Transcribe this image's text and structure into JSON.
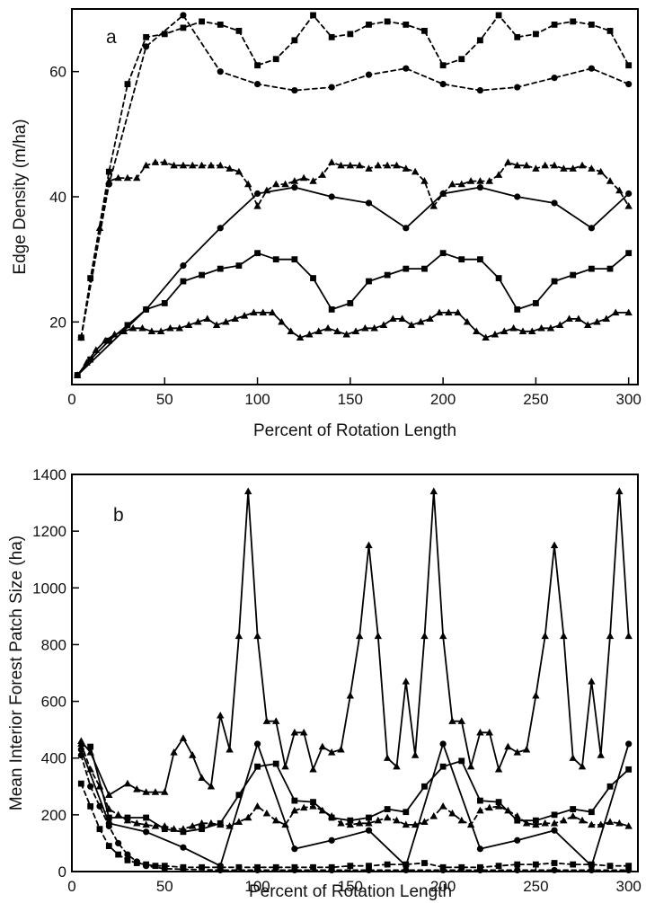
{
  "chart_data": [
    {
      "type": "line",
      "panel_label": "a",
      "xlabel": "Percent of Rotation Length",
      "ylabel": "Edge Density (m/ha)",
      "xlim": [
        0,
        305
      ],
      "ylim": [
        10,
        70
      ],
      "xticks": [
        0,
        50,
        100,
        150,
        200,
        250,
        300
      ],
      "yticks": [
        20,
        40,
        60
      ],
      "grid": false,
      "legend": "none",
      "series": [
        {
          "line_style": "dashed",
          "marker": "square",
          "x": [
            5,
            10,
            20,
            30,
            40,
            50,
            60,
            70,
            80,
            90,
            100,
            110,
            120,
            130,
            140,
            150,
            160,
            170,
            180,
            190,
            200,
            210,
            220,
            230,
            240,
            250,
            260,
            270,
            280,
            290,
            300
          ],
          "y": [
            17.5,
            27,
            44,
            58,
            65.5,
            66,
            67,
            68,
            67.5,
            66.5,
            61,
            62,
            65,
            69,
            65.5,
            66,
            67.5,
            68,
            67.5,
            66.5,
            61,
            62,
            65,
            69,
            65.5,
            66,
            67.5,
            68,
            67.5,
            66.5,
            61
          ]
        },
        {
          "line_style": "dashed",
          "marker": "circle",
          "x": [
            5,
            20,
            40,
            60,
            80,
            100,
            120,
            140,
            160,
            180,
            200,
            220,
            240,
            260,
            280,
            300
          ],
          "y": [
            17.5,
            42,
            64,
            69,
            60,
            58,
            57,
            57.5,
            59.5,
            60.5,
            58,
            57,
            57.5,
            59,
            60.5,
            58
          ]
        },
        {
          "line_style": "dashed",
          "marker": "triangle",
          "x": [
            5,
            15,
            20,
            25,
            30,
            35,
            40,
            45,
            50,
            55,
            60,
            65,
            70,
            75,
            80,
            85,
            90,
            95,
            100,
            105,
            110,
            115,
            120,
            125,
            130,
            135,
            140,
            145,
            150,
            155,
            160,
            165,
            170,
            175,
            180,
            185,
            190,
            195,
            200,
            205,
            210,
            215,
            220,
            225,
            230,
            235,
            240,
            245,
            250,
            255,
            260,
            265,
            270,
            275,
            280,
            285,
            290,
            295,
            300
          ],
          "y": [
            17.5,
            35,
            42.5,
            43,
            43,
            43,
            45,
            45.5,
            45.5,
            45,
            45,
            45,
            45,
            45,
            45,
            44.5,
            44,
            42,
            38.5,
            41,
            42,
            42,
            42.5,
            43,
            42.5,
            43.5,
            45.5,
            45,
            45,
            45,
            44.5,
            45,
            45,
            45,
            44.5,
            44,
            42.5,
            38.5,
            40.5,
            42,
            42,
            42.5,
            42.5,
            42.5,
            43.5,
            45.5,
            45,
            45,
            44.5,
            45,
            45,
            44.5,
            44.5,
            45,
            44.5,
            44,
            42.5,
            41,
            38.5
          ]
        },
        {
          "line_style": "solid",
          "marker": "circle",
          "x": [
            3,
            40,
            60,
            80,
            100,
            120,
            140,
            160,
            180,
            200,
            220,
            240,
            260,
            280,
            300
          ],
          "y": [
            11.5,
            22,
            29,
            35,
            40.5,
            41.5,
            40,
            39,
            35,
            40.5,
            41.5,
            40,
            39,
            35,
            40.5
          ]
        },
        {
          "line_style": "solid",
          "marker": "square",
          "x": [
            3,
            10,
            20,
            30,
            40,
            50,
            60,
            70,
            80,
            90,
            100,
            110,
            120,
            130,
            140,
            150,
            160,
            170,
            180,
            190,
            200,
            210,
            220,
            230,
            240,
            250,
            260,
            270,
            280,
            290,
            300
          ],
          "y": [
            11.5,
            14,
            17,
            19.5,
            22,
            23,
            26.5,
            27.5,
            28.5,
            29,
            31,
            30,
            30,
            27,
            22,
            23,
            26.5,
            27.5,
            28.5,
            28.5,
            31,
            30,
            30,
            27,
            22,
            23,
            26.5,
            27.5,
            28.5,
            28.5,
            31
          ]
        },
        {
          "line_style": "solid",
          "marker": "triangle",
          "x": [
            3,
            8,
            13,
            18,
            23,
            28,
            33,
            38,
            43,
            48,
            53,
            58,
            63,
            68,
            73,
            78,
            83,
            88,
            93,
            98,
            103,
            108,
            113,
            118,
            123,
            128,
            133,
            138,
            143,
            148,
            153,
            158,
            163,
            168,
            173,
            178,
            183,
            188,
            193,
            198,
            203,
            208,
            213,
            218,
            223,
            228,
            233,
            238,
            243,
            248,
            253,
            258,
            263,
            268,
            273,
            278,
            283,
            288,
            293,
            300
          ],
          "y": [
            11.5,
            13.5,
            15.5,
            17,
            18,
            18.5,
            19,
            19,
            18.5,
            18.5,
            19,
            19,
            19.5,
            20,
            20.5,
            19.5,
            20,
            20.5,
            21,
            21.5,
            21.5,
            21.5,
            20,
            18.5,
            17.5,
            18,
            18.5,
            19,
            18.5,
            18,
            18.5,
            19,
            19,
            19.5,
            20.5,
            20.5,
            19.5,
            20,
            20.5,
            21.5,
            21.5,
            21.5,
            20,
            18.5,
            17.5,
            18,
            18.5,
            19,
            18.5,
            18.5,
            19,
            19,
            19.5,
            20.5,
            20.5,
            19.5,
            20,
            20.5,
            21.5,
            21.5
          ]
        }
      ]
    },
    {
      "type": "line",
      "panel_label": "b",
      "xlabel": "Percent of Rotation Length",
      "ylabel": "Mean Interior Forest Patch Size (ha)",
      "xlim": [
        0,
        305
      ],
      "ylim": [
        0,
        1400
      ],
      "xticks": [
        0,
        50,
        100,
        150,
        200,
        250,
        300
      ],
      "yticks": [
        0,
        200,
        400,
        600,
        800,
        1000,
        1200,
        1400
      ],
      "grid": false,
      "legend": "none",
      "series": [
        {
          "line_style": "solid",
          "marker": "triangle",
          "x": [
            5,
            10,
            20,
            30,
            35,
            40,
            45,
            50,
            55,
            60,
            65,
            70,
            75,
            80,
            85,
            90,
            95,
            100,
            105,
            110,
            115,
            120,
            125,
            130,
            135,
            140,
            145,
            150,
            155,
            160,
            165,
            170,
            175,
            180,
            185,
            190,
            195,
            200,
            205,
            210,
            215,
            220,
            225,
            230,
            235,
            240,
            245,
            250,
            255,
            260,
            265,
            270,
            275,
            280,
            285,
            290,
            295,
            300
          ],
          "y": [
            460,
            420,
            270,
            310,
            290,
            280,
            280,
            280,
            420,
            470,
            410,
            330,
            300,
            550,
            430,
            830,
            1340,
            830,
            530,
            530,
            370,
            490,
            490,
            360,
            440,
            420,
            430,
            620,
            830,
            1150,
            830,
            400,
            370,
            670,
            410,
            830,
            1340,
            830,
            530,
            530,
            370,
            490,
            490,
            360,
            440,
            420,
            430,
            620,
            830,
            1150,
            830,
            400,
            370,
            670,
            410,
            830,
            1340,
            830
          ]
        },
        {
          "line_style": "solid",
          "marker": "circle",
          "x": [
            5,
            20,
            40,
            60,
            80,
            100,
            120,
            140,
            160,
            180,
            200,
            220,
            240,
            260,
            280,
            300
          ],
          "y": [
            430,
            170,
            140,
            85,
            20,
            450,
            80,
            110,
            145,
            20,
            450,
            80,
            110,
            145,
            20,
            450
          ]
        },
        {
          "line_style": "solid",
          "marker": "square",
          "x": [
            10,
            20,
            30,
            40,
            50,
            60,
            70,
            80,
            90,
            100,
            110,
            120,
            130,
            140,
            150,
            160,
            170,
            180,
            190,
            200,
            210,
            220,
            230,
            240,
            250,
            260,
            270,
            280,
            290,
            300
          ],
          "y": [
            440,
            190,
            190,
            190,
            150,
            140,
            150,
            170,
            270,
            370,
            380,
            250,
            245,
            190,
            180,
            190,
            220,
            210,
            300,
            370,
            390,
            250,
            245,
            180,
            180,
            200,
            220,
            210,
            300,
            360
          ]
        },
        {
          "line_style": "dashed",
          "marker": "triangle",
          "x": [
            5,
            10,
            15,
            20,
            25,
            30,
            35,
            40,
            45,
            50,
            55,
            60,
            65,
            70,
            75,
            80,
            85,
            90,
            95,
            100,
            105,
            110,
            115,
            120,
            125,
            130,
            135,
            140,
            145,
            150,
            155,
            160,
            165,
            170,
            175,
            180,
            185,
            190,
            195,
            200,
            205,
            210,
            215,
            220,
            225,
            230,
            235,
            240,
            245,
            250,
            255,
            260,
            265,
            270,
            275,
            280,
            285,
            290,
            295,
            300
          ],
          "y": [
            450,
            360,
            300,
            220,
            200,
            180,
            170,
            165,
            160,
            160,
            150,
            150,
            160,
            170,
            170,
            165,
            160,
            175,
            190,
            230,
            205,
            180,
            165,
            215,
            225,
            230,
            215,
            195,
            170,
            165,
            170,
            170,
            180,
            190,
            180,
            165,
            165,
            175,
            195,
            230,
            205,
            180,
            165,
            215,
            225,
            230,
            215,
            195,
            170,
            165,
            170,
            170,
            180,
            195,
            180,
            165,
            165,
            175,
            170,
            160
          ]
        },
        {
          "line_style": "dashed",
          "marker": "square",
          "x": [
            5,
            10,
            15,
            20,
            25,
            30,
            35,
            40,
            45,
            50,
            60,
            70,
            80,
            90,
            100,
            110,
            120,
            130,
            140,
            150,
            160,
            170,
            180,
            190,
            200,
            210,
            220,
            230,
            240,
            250,
            260,
            270,
            280,
            290,
            300
          ],
          "y": [
            310,
            230,
            150,
            90,
            60,
            40,
            30,
            25,
            20,
            20,
            15,
            15,
            15,
            15,
            15,
            15,
            15,
            15,
            15,
            20,
            20,
            25,
            25,
            30,
            15,
            15,
            15,
            20,
            25,
            25,
            30,
            25,
            25,
            20,
            20
          ]
        },
        {
          "line_style": "dashed",
          "marker": "circle",
          "x": [
            5,
            10,
            15,
            20,
            25,
            30,
            35,
            40,
            50,
            60,
            80,
            100,
            120,
            140,
            160,
            180,
            200,
            220,
            240,
            260,
            280,
            300
          ],
          "y": [
            410,
            300,
            230,
            160,
            100,
            60,
            35,
            20,
            10,
            8,
            5,
            5,
            5,
            5,
            5,
            5,
            5,
            5,
            5,
            5,
            5,
            5
          ]
        }
      ]
    }
  ]
}
